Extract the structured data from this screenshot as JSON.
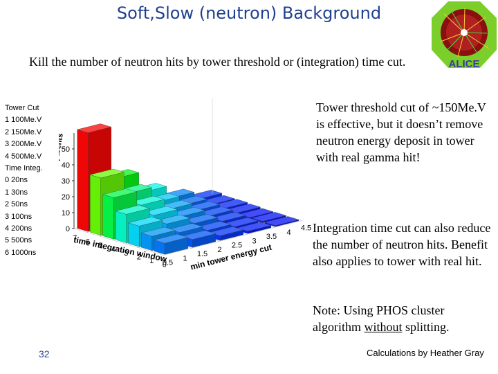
{
  "slide": {
    "title": "Soft,Slow (neutron) Background",
    "subtitle": "Kill the number of neutron hits by tower threshold or (integration) time cut.",
    "legend": [
      "Tower Cut",
      "1 100Me.V",
      "2 150Me.V",
      "3 200Me.V",
      "4 500Me.V",
      "Time Integ.",
      "0 20ns",
      "1 30ns",
      "2 50ns",
      "3 100ns",
      "4 200ns",
      "5 500ns",
      "6 1000ns"
    ],
    "para1": "Tower threshold cut of ~150Me.V is effective, but it doesn’t remove neutron energy deposit in tower with real gamma hit!",
    "para2": "Integration time cut can also reduce the number of neutron hits. Benefit also applies to tower with real hit.",
    "para3_pre": "Note: Using PHOS cluster algorithm ",
    "para3_underline": "without",
    "para3_post": " splitting.",
    "page_number": "32",
    "credit": "Calculations by Heather Gray",
    "logo_text": "ALICE",
    "colors": {
      "title": "#1f3f8f",
      "logo_green": "#7ccf2a",
      "logo_blue": "#3a3aa0"
    }
  },
  "chart_data": {
    "type": "bar",
    "ylabel": "mean number parents",
    "xlabel": "time integration window",
    "zlabel": "min tower energy cut",
    "yticks": [
      "0",
      "10",
      "20",
      "30",
      "40",
      "50"
    ],
    "xticks": [
      "7",
      "6",
      "5",
      "4",
      "3",
      "2",
      "1",
      "0"
    ],
    "zticks": [
      "0.5",
      "1",
      "1.5",
      "2",
      "2.5",
      "3",
      "3.5",
      "4",
      "4.5"
    ],
    "ylim": [
      0,
      60
    ],
    "matrix": [
      [
        62,
        29,
        16,
        8,
        3
      ],
      [
        36,
        22,
        12,
        6,
        2
      ],
      [
        26,
        17,
        10,
        5,
        2
      ],
      [
        18,
        13,
        8,
        4,
        1.5
      ],
      [
        13,
        10,
        6,
        3,
        1
      ],
      [
        9,
        7,
        4,
        2,
        1
      ],
      [
        7,
        5,
        3,
        1.5,
        0.7
      ]
    ]
  }
}
